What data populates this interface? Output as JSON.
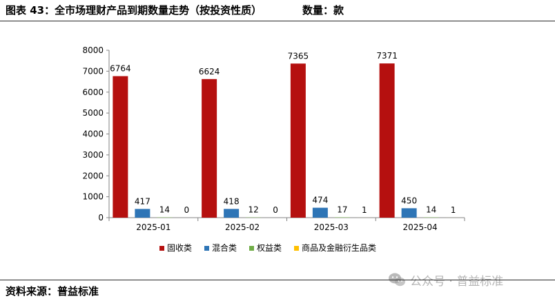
{
  "header": {
    "title": "图表 43：全市场理财产品到期数量走势（按投资性质）",
    "unit": "数量：款"
  },
  "footer": {
    "source": "资料来源：普益标准"
  },
  "watermark": {
    "text": "公众号 · 普益标准",
    "icon": "wechat-icon"
  },
  "chart_data": {
    "type": "bar",
    "categories": [
      "2025-01",
      "2025-02",
      "2025-03",
      "2025-04"
    ],
    "series": [
      {
        "name": "固收类",
        "color": "#b5100f",
        "values": [
          6764,
          6624,
          7365,
          7371
        ]
      },
      {
        "name": "混合类",
        "color": "#2e75b6",
        "values": [
          417,
          418,
          474,
          450
        ]
      },
      {
        "name": "权益类",
        "color": "#70ad47",
        "values": [
          14,
          12,
          17,
          14
        ]
      },
      {
        "name": "商品及金融衍生品类",
        "color": "#ffc000",
        "values": [
          0,
          0,
          1,
          1
        ]
      }
    ],
    "ylim": [
      0,
      8000
    ],
    "yticks": [
      0,
      1000,
      2000,
      3000,
      4000,
      5000,
      6000,
      7000,
      8000
    ],
    "grid": false,
    "legend_position": "bottom",
    "data_labels": true
  }
}
